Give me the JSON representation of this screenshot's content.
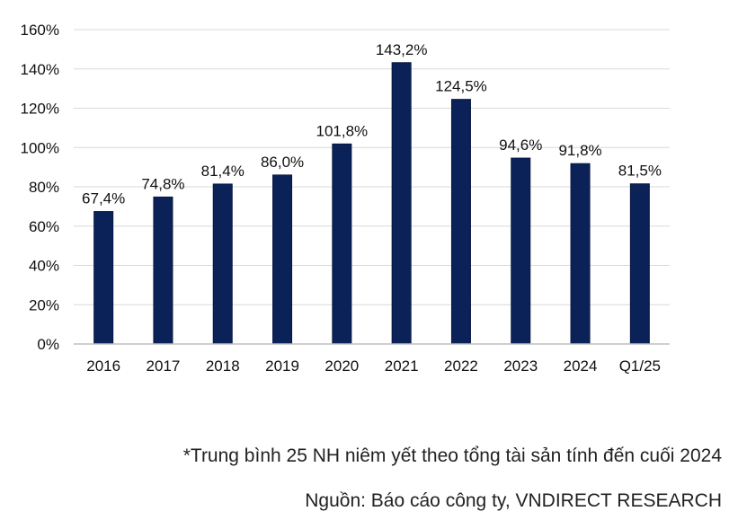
{
  "chart_data": {
    "type": "bar",
    "categories": [
      "2016",
      "2017",
      "2018",
      "2019",
      "2020",
      "2021",
      "2022",
      "2023",
      "2024",
      "Q1/25"
    ],
    "values": [
      67.4,
      74.8,
      81.4,
      86.0,
      101.8,
      143.2,
      124.5,
      94.6,
      91.8,
      81.5
    ],
    "data_labels": [
      "67,4%",
      "74,8%",
      "81,4%",
      "86,0%",
      "101,8%",
      "143,2%",
      "124,5%",
      "94,6%",
      "91,8%",
      "81,5%"
    ],
    "y_ticks": [
      0,
      20,
      40,
      60,
      80,
      100,
      120,
      140,
      160
    ],
    "y_tick_labels": [
      "0%",
      "20%",
      "40%",
      "60%",
      "80%",
      "100%",
      "120%",
      "140%",
      "160%"
    ],
    "ylim": [
      0,
      160
    ],
    "grid": true,
    "bar_color": "#0b2258",
    "grid_color": "#d9d9d9"
  },
  "footnote": "*Trung bình 25 NH niêm yết theo tổng tài sản tính đến cuối 2024",
  "source": "Nguồn: Báo cáo công ty, VNDIRECT RESEARCH"
}
